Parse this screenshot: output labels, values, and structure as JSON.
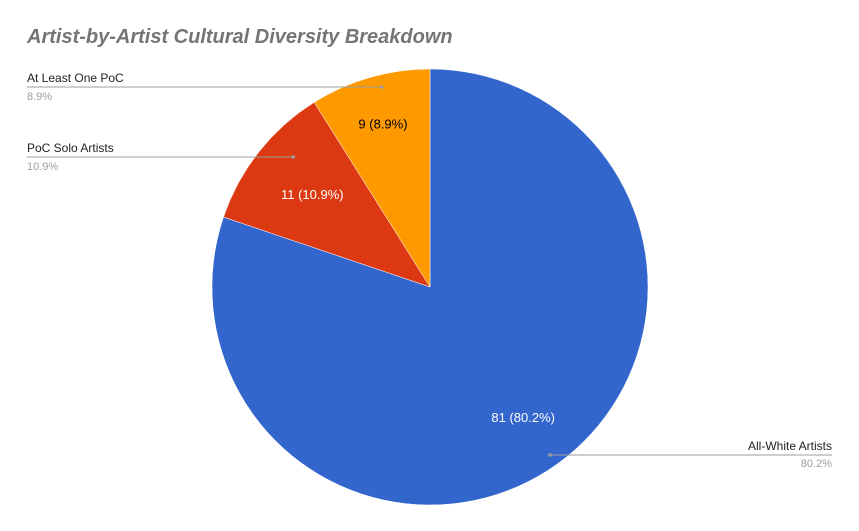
{
  "chart_data": {
    "type": "pie",
    "title": "Artist-by-Artist Cultural Diversity Breakdown",
    "start_angle_deg": 0,
    "direction": "clockwise",
    "slices": [
      {
        "name": "All-White Artists",
        "value": 81,
        "percent_label": "80.2%",
        "data_label": "81 (80.2%)",
        "color": "#3366cc",
        "label_color": "#ffffff"
      },
      {
        "name": "PoC Solo Artists",
        "value": 11,
        "percent_label": "10.9%",
        "data_label": "11 (10.9%)",
        "color": "#dc3912",
        "label_color": "#ffffff"
      },
      {
        "name": "At Least One PoC",
        "value": 9,
        "percent_label": "8.9%",
        "data_label": "9 (8.9%)",
        "color": "#ff9900",
        "label_color": "#000000"
      }
    ]
  }
}
